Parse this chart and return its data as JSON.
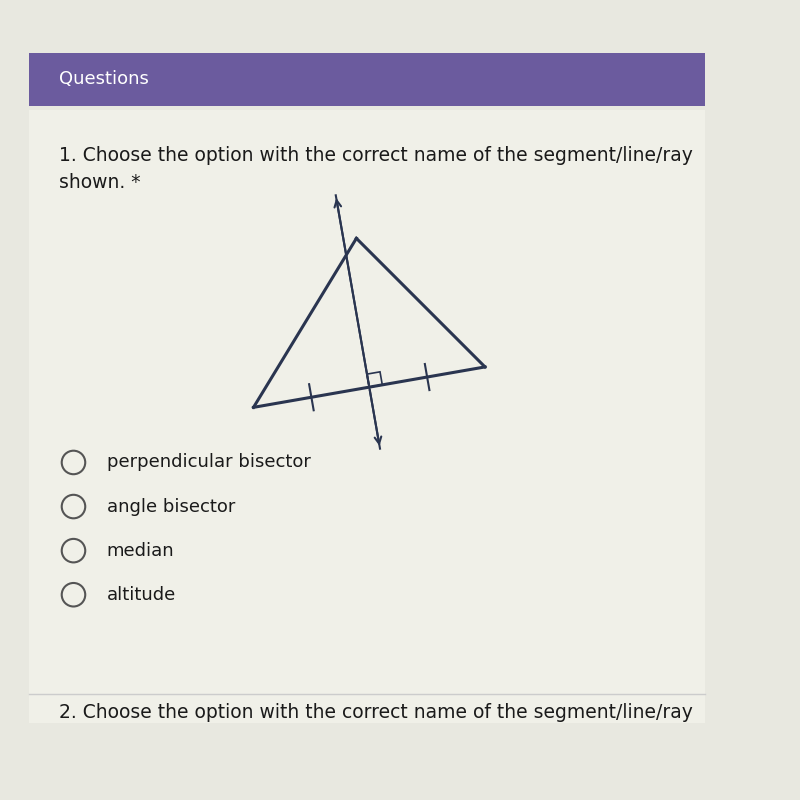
{
  "bg_color": "#e8e8e0",
  "header_color": "#6b5b9e",
  "header_text": "Questions",
  "header_text_color": "#ffffff",
  "question_text": "1. Choose the option with the correct name of the segment/line/ray\nshown. *",
  "question_text_color": "#1a1a1a",
  "question_fontsize": 13.5,
  "options": [
    "perpendicular bisector",
    "angle bisector",
    "median",
    "altitude"
  ],
  "option_fontsize": 13,
  "option_text_color": "#1a1a1a",
  "footer_text": "2. Choose the option with the correct name of the segment/line/ray",
  "footer_text_color": "#1a1a1a",
  "footer_fontsize": 13.5,
  "triangle_color": "#2a3550",
  "triangle_lw": 2.2,
  "bisector_lw": 1.5,
  "content_bg": "#f0f0e8"
}
